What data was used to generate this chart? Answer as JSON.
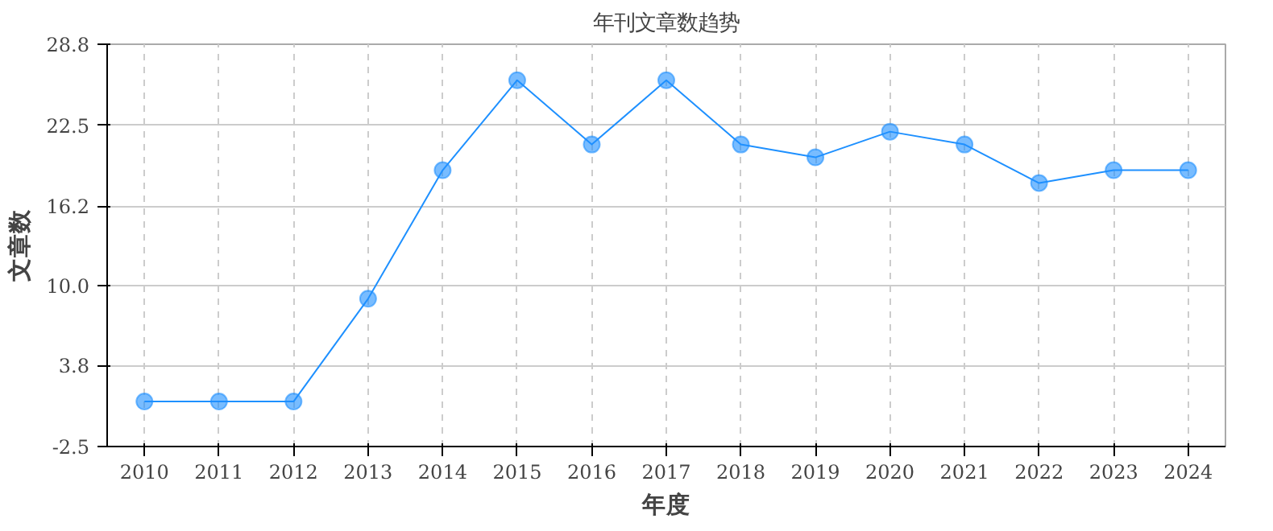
{
  "chart_data": {
    "type": "line",
    "title": "年刊文章数趋势",
    "xlabel": "年度",
    "ylabel": "文章数",
    "categories": [
      "2010",
      "2011",
      "2012",
      "2013",
      "2014",
      "2015",
      "2016",
      "2017",
      "2018",
      "2019",
      "2020",
      "2021",
      "2022",
      "2023",
      "2024"
    ],
    "series": [
      {
        "color": "#1e90ff",
        "values": [
          1,
          1,
          1,
          9,
          19,
          26,
          21,
          26,
          21,
          20,
          22,
          21,
          18,
          19,
          19
        ]
      }
    ],
    "ylim": [
      -2.5,
      28.8
    ],
    "yticks": [
      -2.5,
      3.8,
      {
        "value": 10,
        "label": "10.0"
      },
      16.2,
      22.5,
      28.8
    ],
    "grid": true,
    "marker": "circle",
    "line_style": "solid"
  }
}
